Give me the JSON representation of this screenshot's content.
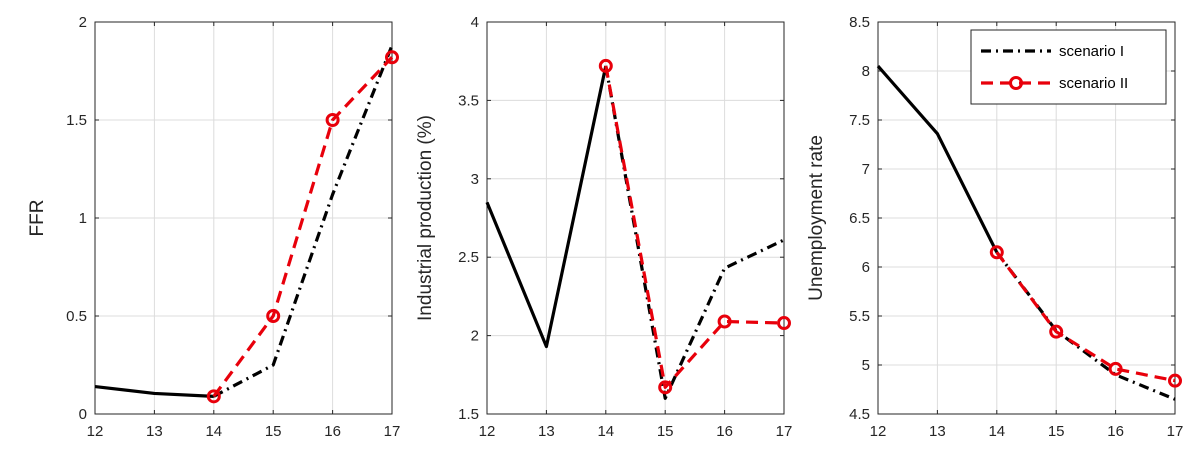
{
  "colors": {
    "scenario_1": "#000000",
    "scenario_2": "#e8000b",
    "axis": "#262626",
    "grid": "#dcdcdc"
  },
  "legend": {
    "placement": "top-right",
    "panel": 2,
    "entries": [
      "scenario I",
      "scenario II"
    ]
  },
  "chart_data": [
    {
      "type": "line",
      "ylabel": "FFR",
      "xlim": [
        12,
        17
      ],
      "ylim": [
        0,
        2
      ],
      "xticks": [
        12,
        13,
        14,
        15,
        16,
        17
      ],
      "yticks": [
        0,
        0.5,
        1,
        1.5,
        2
      ],
      "ytick_labels": [
        "0",
        "0.5",
        "1",
        "1.5",
        "2"
      ],
      "grid": true,
      "history": {
        "x": [
          12,
          13,
          14
        ],
        "y": [
          0.14,
          0.105,
          0.09
        ]
      },
      "series": [
        {
          "name": "scenario I",
          "x": [
            14,
            15,
            16,
            17
          ],
          "y": [
            0.09,
            0.25,
            1.12,
            1.88
          ],
          "style": "dashdot",
          "markers": false
        },
        {
          "name": "scenario II",
          "x": [
            14,
            15,
            16,
            17
          ],
          "y": [
            0.09,
            0.5,
            1.5,
            1.82
          ],
          "style": "dashed",
          "markers": true
        }
      ]
    },
    {
      "type": "line",
      "ylabel": "Industrial production (%)",
      "xlim": [
        12,
        17
      ],
      "ylim": [
        1.5,
        4
      ],
      "xticks": [
        12,
        13,
        14,
        15,
        16,
        17
      ],
      "yticks": [
        1.5,
        2,
        2.5,
        3,
        3.5,
        4
      ],
      "ytick_labels": [
        "1.5",
        "2",
        "2.5",
        "3",
        "3.5",
        "4"
      ],
      "grid": true,
      "history": {
        "x": [
          12,
          13,
          14
        ],
        "y": [
          2.85,
          1.93,
          3.72
        ]
      },
      "series": [
        {
          "name": "scenario I",
          "x": [
            14,
            15,
            16,
            17
          ],
          "y": [
            3.72,
            1.6,
            2.43,
            2.61
          ],
          "style": "dashdot",
          "markers": false
        },
        {
          "name": "scenario II",
          "x": [
            14,
            15,
            16,
            17
          ],
          "y": [
            3.72,
            1.67,
            2.09,
            2.08
          ],
          "style": "dashed",
          "markers": true
        }
      ]
    },
    {
      "type": "line",
      "ylabel": "Unemployment rate",
      "xlim": [
        12,
        17
      ],
      "ylim": [
        4.5,
        8.5
      ],
      "xticks": [
        12,
        13,
        14,
        15,
        16,
        17
      ],
      "yticks": [
        4.5,
        5,
        5.5,
        6,
        6.5,
        7,
        7.5,
        8,
        8.5
      ],
      "ytick_labels": [
        "4.5",
        "5",
        "5.5",
        "6",
        "6.5",
        "7",
        "7.5",
        "8",
        "8.5"
      ],
      "grid": true,
      "history": {
        "x": [
          12,
          13,
          14
        ],
        "y": [
          8.05,
          7.36,
          6.15
        ]
      },
      "series": [
        {
          "name": "scenario I",
          "x": [
            14,
            15,
            16,
            17
          ],
          "y": [
            6.15,
            5.35,
            4.9,
            4.65
          ],
          "style": "dashdot",
          "markers": false
        },
        {
          "name": "scenario II",
          "x": [
            14,
            15,
            16,
            17
          ],
          "y": [
            6.15,
            5.34,
            4.96,
            4.84
          ],
          "style": "dashed",
          "markers": true
        }
      ]
    }
  ]
}
